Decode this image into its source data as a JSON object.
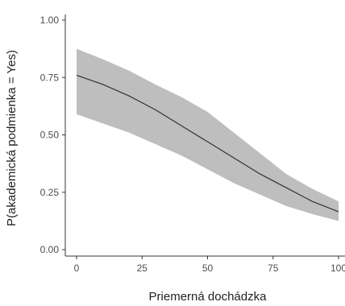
{
  "chart_data": {
    "type": "line",
    "title": "",
    "xlabel": "Priemerná dochádzka",
    "ylabel": "P(akademická podmienka = Yes)",
    "xlim": [
      0,
      100
    ],
    "ylim": [
      0,
      1
    ],
    "x_ticks": [
      0,
      25,
      50,
      75,
      100
    ],
    "x_tick_labels": [
      "0",
      "25",
      "50",
      "75",
      "100"
    ],
    "y_ticks": [
      0,
      0.25,
      0.5,
      0.75,
      1.0
    ],
    "y_tick_labels": [
      "0.00",
      "0.25",
      "0.50",
      "0.75",
      "1.00"
    ],
    "grid": false,
    "series": [
      {
        "x": [
          0,
          10,
          20,
          30,
          40,
          50,
          60,
          70,
          80,
          90,
          100
        ],
        "y": [
          0.76,
          0.72,
          0.67,
          0.61,
          0.54,
          0.47,
          0.4,
          0.33,
          0.27,
          0.21,
          0.165
        ],
        "lower": [
          0.59,
          0.55,
          0.51,
          0.46,
          0.41,
          0.35,
          0.29,
          0.24,
          0.19,
          0.155,
          0.125
        ],
        "upper": [
          0.875,
          0.83,
          0.78,
          0.72,
          0.665,
          0.6,
          0.51,
          0.42,
          0.33,
          0.265,
          0.21
        ],
        "line_color": "#333333",
        "band_color": "#bebebe"
      }
    ]
  }
}
